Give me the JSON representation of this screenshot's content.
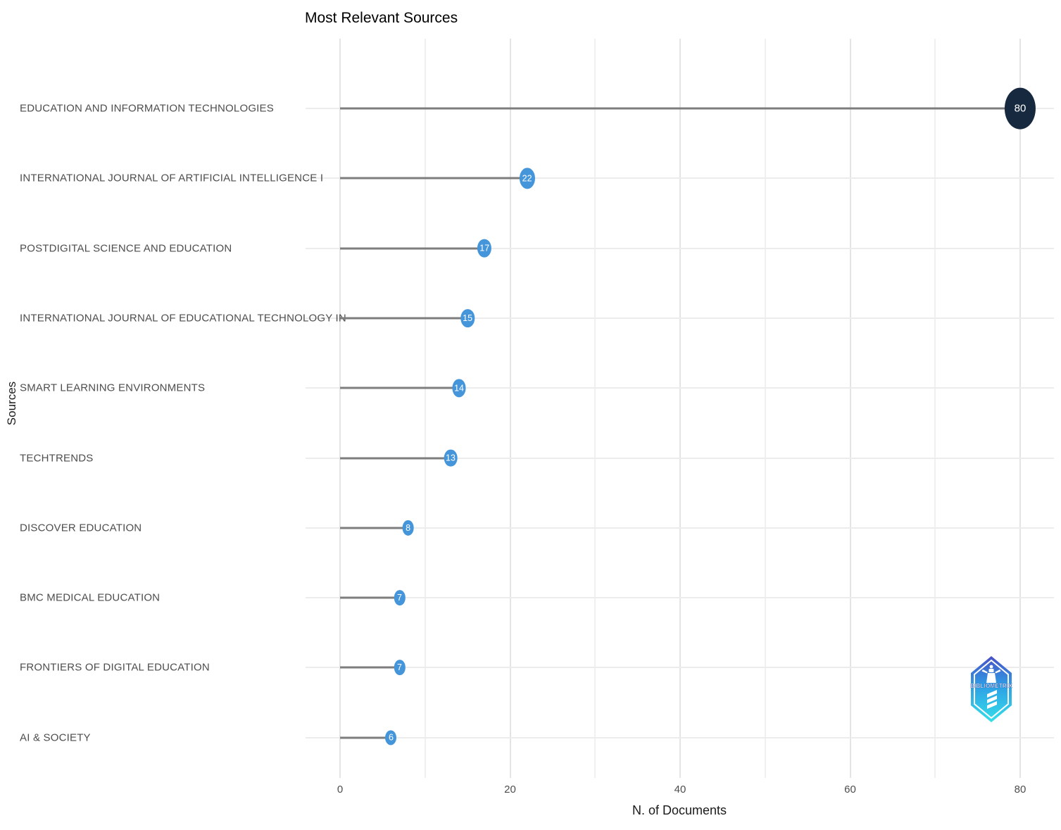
{
  "title": "Most Relevant Sources",
  "chart_data": {
    "type": "scatter",
    "variant": "lollipop",
    "title": "Most Relevant Sources",
    "xlabel": "N. of Documents",
    "ylabel": "Sources",
    "categories": [
      "EDUCATION AND INFORMATION TECHNOLOGIES",
      "INTERNATIONAL JOURNAL OF ARTIFICIAL INTELLIGENCE I",
      "POSTDIGITAL SCIENCE AND EDUCATION",
      "INTERNATIONAL JOURNAL OF EDUCATIONAL TECHNOLOGY IN",
      "SMART LEARNING ENVIRONMENTS",
      "TECHTRENDS",
      "DISCOVER EDUCATION",
      "BMC MEDICAL EDUCATION",
      "FRONTIERS OF DIGITAL EDUCATION",
      "AI & SOCIETY"
    ],
    "values": [
      80,
      22,
      17,
      15,
      14,
      13,
      8,
      7,
      7,
      6
    ],
    "point_colors": [
      "#16293f",
      "#4495da",
      "#4495da",
      "#4495da",
      "#4495da",
      "#4495da",
      "#4495da",
      "#4495da",
      "#4495da",
      "#4495da"
    ],
    "xlim": [
      0,
      80
    ],
    "x_ticks": [
      0,
      20,
      40,
      60,
      80
    ],
    "minor_tick_step": 10,
    "grid": true,
    "legend": "none",
    "colors": {
      "stem": "#7d7d7d",
      "grid_major": "#e4e4e4",
      "grid_minor": "#f0f0f0",
      "point_default": "#4495da",
      "point_max": "#16293f",
      "value_label": "#ffffff"
    }
  },
  "logo": {
    "text": "BIBLIOMETRIX"
  }
}
